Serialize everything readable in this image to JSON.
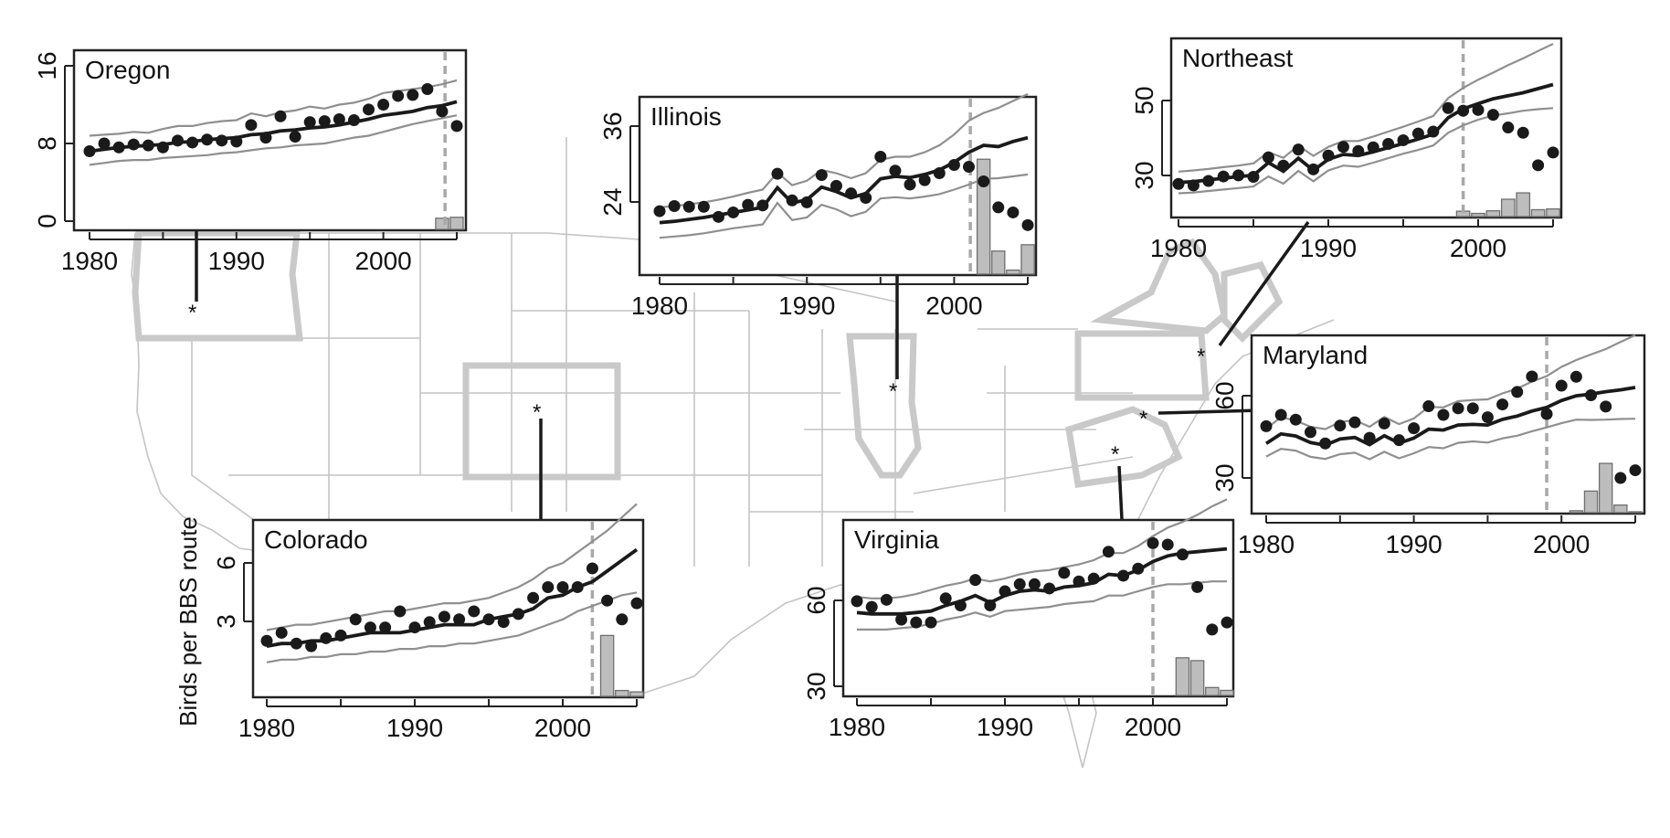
{
  "figure": {
    "ylabel": "Birds per BBS route",
    "site_marker": "*"
  },
  "chart_data": [
    {
      "type": "line",
      "title": "Oregon",
      "xlim": [
        1980,
        2005
      ],
      "ylim": [
        0,
        16
      ],
      "xticks": [
        "1980",
        "1990",
        "2000"
      ],
      "yticks": [
        "0",
        "8",
        "16"
      ],
      "x": [
        1980,
        1981,
        1982,
        1983,
        1984,
        1985,
        1986,
        1987,
        1988,
        1989,
        1990,
        1991,
        1992,
        1993,
        1994,
        1995,
        1996,
        1997,
        1998,
        1999,
        2000,
        2001,
        2002,
        2003,
        2004,
        2005
      ],
      "observed": [
        7.2,
        8.0,
        7.6,
        7.9,
        7.8,
        7.6,
        8.3,
        8.1,
        8.4,
        8.3,
        8.2,
        9.9,
        8.6,
        10.8,
        8.7,
        10.2,
        10.3,
        10.5,
        10.4,
        11.5,
        12.0,
        12.9,
        13.0,
        13.6,
        11.3,
        9.8
      ],
      "trend": [
        7.2,
        7.4,
        7.6,
        7.7,
        7.8,
        7.9,
        8.1,
        8.2,
        8.4,
        8.5,
        8.6,
        8.9,
        9.0,
        9.3,
        9.4,
        9.6,
        9.7,
        9.9,
        10.2,
        10.5,
        10.9,
        11.1,
        11.3,
        11.7,
        11.9,
        12.3
      ],
      "upper": [
        8.8,
        8.9,
        9.0,
        9.2,
        9.1,
        9.5,
        9.8,
        9.8,
        10.1,
        10.3,
        10.4,
        11.1,
        10.8,
        11.2,
        11.4,
        11.8,
        11.6,
        12.0,
        12.2,
        12.6,
        13.2,
        13.4,
        13.6,
        13.8,
        14.1,
        14.5
      ],
      "lower": [
        5.8,
        6.0,
        6.2,
        6.3,
        6.3,
        6.5,
        6.6,
        6.7,
        6.8,
        7.0,
        7.1,
        7.3,
        7.5,
        7.6,
        7.8,
        7.9,
        8.0,
        8.3,
        8.6,
        8.8,
        9.2,
        9.6,
        10.0,
        10.3,
        10.6,
        10.9
      ],
      "change_year": 2004.2,
      "histogram": [
        {
          "year": 2004,
          "value": 0.3
        },
        {
          "year": 2005,
          "value": 0.4
        }
      ]
    },
    {
      "type": "line",
      "title": "Illinois",
      "xlim": [
        1980,
        2005
      ],
      "ylim": [
        13,
        42
      ],
      "xticks": [
        "1980",
        "1990",
        "2000"
      ],
      "yticks": [
        "24",
        "36"
      ],
      "x": [
        1980,
        1981,
        1982,
        1983,
        1984,
        1985,
        1986,
        1987,
        1988,
        1989,
        1990,
        1991,
        1992,
        1993,
        1994,
        1995,
        1996,
        1997,
        1998,
        1999,
        2000,
        2001,
        2002,
        2003,
        2004,
        2005
      ],
      "observed": [
        22.8,
        23.6,
        23.5,
        23.5,
        21.9,
        22.6,
        23.8,
        23.7,
        28.7,
        24.5,
        24.2,
        28.5,
        26.8,
        25.6,
        24.9,
        31.4,
        29.2,
        27.0,
        27.7,
        28.8,
        30.1,
        29.8,
        27.5,
        23.4,
        22.6,
        20.6
      ],
      "trend": [
        21.0,
        21.2,
        21.5,
        21.8,
        22.2,
        22.6,
        23.0,
        23.4,
        26.5,
        24.1,
        24.6,
        26.6,
        25.9,
        24.9,
        25.6,
        27.9,
        28.3,
        28.1,
        28.6,
        29.3,
        30.5,
        32.1,
        33.2,
        33.0,
        33.8,
        34.4
      ],
      "upper": [
        23.4,
        23.6,
        23.9,
        24.2,
        24.6,
        25.1,
        25.7,
        26.2,
        28.9,
        26.9,
        27.6,
        29.3,
        28.8,
        28.0,
        28.8,
        30.9,
        31.4,
        31.4,
        32.1,
        33.2,
        34.9,
        37.1,
        38.3,
        39.1,
        40.2,
        41.3
      ],
      "lower": [
        18.6,
        18.8,
        19.0,
        19.3,
        19.7,
        20.1,
        20.4,
        20.7,
        24.1,
        21.4,
        21.8,
        23.8,
        23.1,
        22.0,
        22.7,
        24.8,
        25.0,
        24.8,
        25.1,
        25.5,
        26.2,
        27.0,
        27.9,
        28.0,
        28.3,
        28.6
      ],
      "change_year": 2001.1,
      "histogram": [
        {
          "year": 2002,
          "value": 18
        },
        {
          "year": 2003,
          "value": 3.5
        },
        {
          "year": 2004,
          "value": 0.5
        },
        {
          "year": 2005,
          "value": 4.5
        }
      ]
    },
    {
      "type": "line",
      "title": "Northeast",
      "xlim": [
        1980,
        2005
      ],
      "ylim": [
        20,
        66
      ],
      "xticks": [
        "1980",
        "1990",
        "2000"
      ],
      "yticks": [
        "30",
        "50"
      ],
      "x": [
        1980,
        1981,
        1982,
        1983,
        1984,
        1985,
        1986,
        1987,
        1988,
        1989,
        1990,
        1991,
        1992,
        1993,
        1994,
        1995,
        1996,
        1997,
        1998,
        1999,
        2000,
        2001,
        2002,
        2003,
        2004,
        2005
      ],
      "observed": [
        28.5,
        28.1,
        29.3,
        30.5,
        30.8,
        30.4,
        35.6,
        33.4,
        37.7,
        32.4,
        36.1,
        38.4,
        37.3,
        38.3,
        39.2,
        40.2,
        42.0,
        42.5,
        48.8,
        48.1,
        48.3,
        47.0,
        43.6,
        42.2,
        33.5,
        36.9
      ],
      "trend": [
        28.9,
        29.1,
        29.6,
        30.0,
        30.5,
        30.8,
        34.2,
        31.9,
        35.4,
        32.1,
        35.1,
        36.4,
        36.1,
        37.1,
        38.2,
        39.3,
        40.5,
        41.8,
        46.2,
        48.6,
        50.0,
        51.3,
        52.1,
        52.9,
        54.0,
        55.1
      ],
      "upper": [
        31.8,
        32.1,
        32.5,
        33.0,
        33.4,
        34.0,
        37.0,
        35.5,
        38.8,
        36.0,
        38.4,
        40.0,
        40.0,
        41.2,
        42.5,
        43.8,
        45.2,
        46.7,
        51.5,
        54.2,
        56.4,
        58.3,
        60.3,
        62.1,
        64.1,
        66.0
      ],
      "lower": [
        26.0,
        26.2,
        26.6,
        27.0,
        27.4,
        27.8,
        30.5,
        28.6,
        32.0,
        29.2,
        32.1,
        33.4,
        33.1,
        34.2,
        35.4,
        36.6,
        37.6,
        38.8,
        42.2,
        44.2,
        45.7,
        46.8,
        47.4,
        48.1,
        48.5,
        48.8
      ],
      "change_year": 1999,
      "histogram": [
        {
          "year": 1999,
          "value": 1.2
        },
        {
          "year": 2000,
          "value": 0.6
        },
        {
          "year": 2001,
          "value": 1.3
        },
        {
          "year": 2002,
          "value": 4.4
        },
        {
          "year": 2003,
          "value": 6.1
        },
        {
          "year": 2004,
          "value": 1.6
        },
        {
          "year": 2005,
          "value": 1.8
        }
      ]
    },
    {
      "type": "line",
      "title": "Maryland",
      "xlim": [
        1980,
        2005
      ],
      "ylim": [
        20,
        86
      ],
      "xticks": [
        "1980",
        "1990",
        "2000"
      ],
      "yticks": [
        "30",
        "60"
      ],
      "x": [
        1980,
        1981,
        1982,
        1983,
        1984,
        1985,
        1986,
        1987,
        1988,
        1989,
        1990,
        1991,
        1992,
        1993,
        1994,
        1995,
        1996,
        1997,
        1998,
        1999,
        2000,
        2001,
        2002,
        2003,
        2004,
        2005
      ],
      "observed": [
        51.2,
        55.0,
        53.4,
        49.2,
        45.4,
        51.4,
        52.5,
        47.3,
        52.1,
        46.5,
        50.5,
        57.9,
        55.0,
        57.2,
        57.2,
        54.2,
        58.5,
        62.7,
        67.9,
        55.3,
        64.8,
        67.8,
        61.6,
        57.8,
        33.8,
        36.4
      ],
      "trend": [
        45.4,
        48.6,
        47.9,
        45.7,
        44.8,
        46.9,
        47.4,
        45.0,
        48.0,
        45.5,
        47.2,
        50.2,
        49.9,
        51.6,
        51.8,
        51.6,
        53.5,
        54.6,
        56.3,
        57.5,
        59.8,
        61.4,
        62.0,
        62.8,
        63.4,
        64.2
      ],
      "upper": [
        50.4,
        54.2,
        53.1,
        51.0,
        50.2,
        52.6,
        53.2,
        51.0,
        54.3,
        51.9,
        53.8,
        57.7,
        57.5,
        59.6,
        60.0,
        60.2,
        62.2,
        63.8,
        66.2,
        68.0,
        71.1,
        73.4,
        75.3,
        77.1,
        79.5,
        81.8
      ],
      "lower": [
        41.0,
        43.6,
        43.0,
        40.9,
        40.2,
        41.8,
        42.3,
        40.1,
        42.6,
        40.4,
        42.1,
        44.2,
        43.8,
        45.6,
        46.1,
        45.7,
        47.1,
        48.0,
        49.5,
        50.8,
        52.2,
        53.4,
        53.3,
        53.4,
        53.6,
        53.7
      ],
      "change_year": 1999,
      "histogram": [
        {
          "year": 2001,
          "value": 2.8
        },
        {
          "year": 2002,
          "value": 9.4
        },
        {
          "year": 2003,
          "value": 18.7
        },
        {
          "year": 2004,
          "value": 4.7
        },
        {
          "year": 2005,
          "value": 1.2
        }
      ]
    },
    {
      "type": "line",
      "title": "Colorado",
      "xlim": [
        1980,
        2005
      ],
      "ylim": [
        0,
        8
      ],
      "xticks": [
        "1980",
        "1990",
        "2000"
      ],
      "yticks": [
        "3",
        "6"
      ],
      "x": [
        1980,
        1981,
        1982,
        1983,
        1984,
        1985,
        1986,
        1987,
        1988,
        1989,
        1990,
        1991,
        1992,
        1993,
        1994,
        1995,
        1996,
        1997,
        1998,
        1999,
        2000,
        2001,
        2002,
        2003,
        2004,
        2005
      ],
      "observed": [
        2.0,
        2.3,
        1.9,
        1.8,
        2.1,
        2.2,
        2.8,
        2.5,
        2.5,
        3.1,
        2.5,
        2.7,
        2.9,
        2.8,
        3.1,
        2.8,
        2.7,
        3.0,
        3.6,
        4.0,
        4.0,
        4.0,
        4.7,
        3.5,
        2.8,
        3.4
      ],
      "trend": [
        1.8,
        1.9,
        1.9,
        2.0,
        2.0,
        2.1,
        2.2,
        2.3,
        2.3,
        2.3,
        2.4,
        2.5,
        2.6,
        2.6,
        2.6,
        2.8,
        2.9,
        3.0,
        3.2,
        3.6,
        3.7,
        4.0,
        4.2,
        4.6,
        5.0,
        5.4
      ],
      "upper": [
        2.4,
        2.5,
        2.6,
        2.6,
        2.7,
        2.8,
        2.9,
        3.0,
        3.1,
        3.1,
        3.2,
        3.3,
        3.4,
        3.4,
        3.5,
        3.6,
        3.8,
        4.0,
        4.3,
        4.7,
        4.9,
        5.3,
        5.7,
        6.1,
        6.6,
        7.1
      ],
      "lower": [
        1.2,
        1.3,
        1.3,
        1.4,
        1.4,
        1.5,
        1.5,
        1.6,
        1.6,
        1.7,
        1.7,
        1.8,
        1.8,
        1.9,
        1.9,
        2.0,
        2.1,
        2.2,
        2.4,
        2.6,
        2.8,
        3.1,
        3.3,
        3.5,
        3.7,
        3.8
      ],
      "change_year": 2002,
      "histogram": [
        {
          "year": 2003,
          "value": 2.2
        },
        {
          "year": 2004,
          "value": 0.15
        },
        {
          "year": 2005,
          "value": 0.1
        }
      ]
    },
    {
      "type": "line",
      "title": "Virginia",
      "xlim": [
        1980,
        2005
      ],
      "ylim": [
        28,
        100
      ],
      "xticks": [
        "1980",
        "1990",
        "2000"
      ],
      "yticks": [
        "30",
        "60"
      ],
      "x": [
        1980,
        1981,
        1982,
        1983,
        1984,
        1985,
        1986,
        1987,
        1988,
        1989,
        1990,
        1991,
        1992,
        1993,
        1994,
        1995,
        1996,
        1997,
        1998,
        1999,
        2000,
        2001,
        2002,
        2003,
        2004,
        2005
      ],
      "observed": [
        60.0,
        58.0,
        60.5,
        53.5,
        52.5,
        52.5,
        61.0,
        58.5,
        67.5,
        58.5,
        63.5,
        66.0,
        66.0,
        64.5,
        70.0,
        67.0,
        68.0,
        77.5,
        69.0,
        71.5,
        80.5,
        80.0,
        76.5,
        65.0,
        50.0,
        52.5
      ],
      "trend": [
        56.0,
        55.5,
        55.5,
        55.5,
        56.0,
        56.5,
        58.5,
        60.0,
        62.0,
        59.5,
        62.0,
        63.5,
        64.0,
        63.5,
        65.0,
        65.5,
        66.5,
        69.5,
        69.0,
        71.0,
        74.0,
        76.0,
        77.0,
        77.5,
        78.0,
        78.5
      ],
      "upper": [
        61.5,
        61.0,
        61.0,
        61.5,
        62.5,
        64.0,
        65.5,
        66.5,
        68.0,
        67.0,
        68.0,
        69.5,
        70.5,
        71.0,
        72.0,
        73.0,
        74.5,
        77.0,
        77.0,
        79.5,
        83.0,
        86.0,
        88.0,
        90.5,
        93.5,
        96.0
      ],
      "lower": [
        50.0,
        50.0,
        50.0,
        50.5,
        51.0,
        52.0,
        53.5,
        54.5,
        56.0,
        54.5,
        56.5,
        57.0,
        57.5,
        58.0,
        59.0,
        59.5,
        60.0,
        62.0,
        62.0,
        63.5,
        65.0,
        66.0,
        66.0,
        66.5,
        67.0,
        67.0
      ],
      "change_year": 2000,
      "histogram": [
        {
          "year": 2002,
          "value": 12.0
        },
        {
          "year": 2003,
          "value": 11.0
        },
        {
          "year": 2004,
          "value": 1.5
        },
        {
          "year": 2005,
          "value": 0.5
        }
      ]
    }
  ]
}
